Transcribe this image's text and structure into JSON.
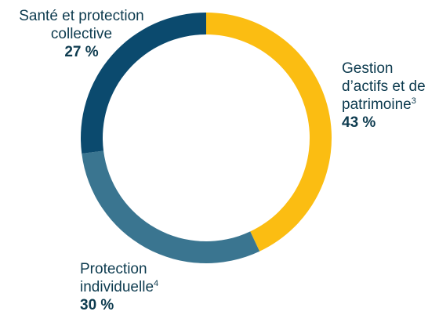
{
  "chart_data": {
    "type": "pie",
    "donut": true,
    "slices": [
      {
        "key": "gestion",
        "label": "Gestion d’actifs et de patrimoine",
        "footnote": "3",
        "value": 43,
        "value_label": "43 %",
        "color": "#fbbd12"
      },
      {
        "key": "protection",
        "label": "Protection individuelle",
        "footnote": "4",
        "value": 30,
        "value_label": "30 %",
        "color": "#3a7590"
      },
      {
        "key": "sante",
        "label": "Santé et protection collective",
        "footnote": "",
        "value": 27,
        "value_label": "27 %",
        "color": "#0b4a6e"
      }
    ]
  },
  "labels": {
    "sante": {
      "line1": "Santé et protection",
      "line2": "collective",
      "pct": "27 %"
    },
    "gestion": {
      "line1": "Gestion",
      "line2": "d’actifs et de",
      "line3": "patrimoine",
      "sup": "3",
      "pct": "43 %"
    },
    "protection": {
      "line1": "Protection",
      "line2": "individuelle",
      "sup": "4",
      "pct": "30 %"
    }
  }
}
